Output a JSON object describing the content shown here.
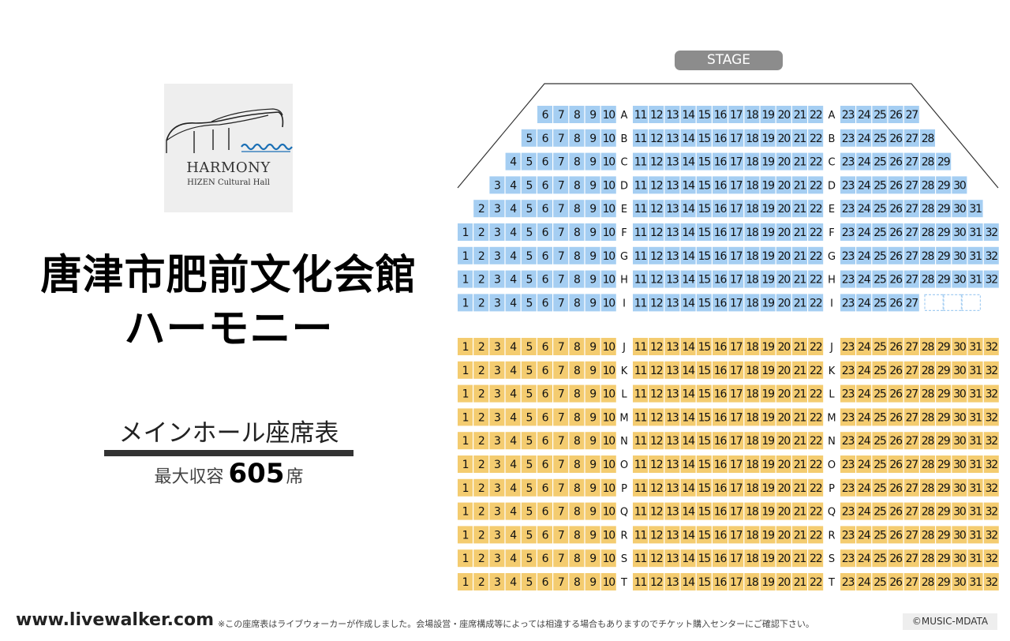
{
  "logo": {
    "name": "HARMONY",
    "sub": "HIZEN Cultural Hall"
  },
  "venue": {
    "title_line1": "唐津市肥前文化会館",
    "title_line2": "ハーモニー"
  },
  "hall": {
    "name": "メインホール座席表",
    "capacity_prefix": "最大収容",
    "capacity_number": "605",
    "capacity_suffix": "席"
  },
  "stage_label": "STAGE",
  "footer": {
    "site": "www.livewalker.com",
    "note": "※この座席表はライブウォーカーが作成しました。会場設営・座席構成等によっては相違する場合もありますのでチケット購入センターにご確認下さい。",
    "credit": "©MUSIC-MDATA"
  },
  "colors": {
    "front_block": "#a5cef2",
    "rear_block": "#f4cc70",
    "stage": "#8c8c8c"
  },
  "seat_rows": [
    {
      "row": "A",
      "block": "front",
      "first": 6,
      "last": 27
    },
    {
      "row": "B",
      "block": "front",
      "first": 5,
      "last": 28
    },
    {
      "row": "C",
      "block": "front",
      "first": 4,
      "last": 29
    },
    {
      "row": "D",
      "block": "front",
      "first": 3,
      "last": 30
    },
    {
      "row": "E",
      "block": "front",
      "first": 2,
      "last": 31
    },
    {
      "row": "F",
      "block": "front",
      "first": 1,
      "last": 32
    },
    {
      "row": "G",
      "block": "front",
      "first": 1,
      "last": 32
    },
    {
      "row": "H",
      "block": "front",
      "first": 1,
      "last": 32
    },
    {
      "row": "I",
      "block": "front",
      "first": 1,
      "last": 27,
      "wheelchair_spaces": 3
    },
    {
      "row": "J",
      "block": "rear",
      "first": 1,
      "last": 32
    },
    {
      "row": "K",
      "block": "rear",
      "first": 1,
      "last": 32
    },
    {
      "row": "L",
      "block": "rear",
      "first": 1,
      "last": 32
    },
    {
      "row": "M",
      "block": "rear",
      "first": 1,
      "last": 32
    },
    {
      "row": "N",
      "block": "rear",
      "first": 1,
      "last": 32
    },
    {
      "row": "O",
      "block": "rear",
      "first": 1,
      "last": 32
    },
    {
      "row": "P",
      "block": "rear",
      "first": 1,
      "last": 32
    },
    {
      "row": "Q",
      "block": "rear",
      "first": 1,
      "last": 32
    },
    {
      "row": "R",
      "block": "rear",
      "first": 1,
      "last": 32
    },
    {
      "row": "S",
      "block": "rear",
      "first": 1,
      "last": 32
    },
    {
      "row": "T",
      "block": "rear",
      "first": 1,
      "last": 32
    }
  ]
}
